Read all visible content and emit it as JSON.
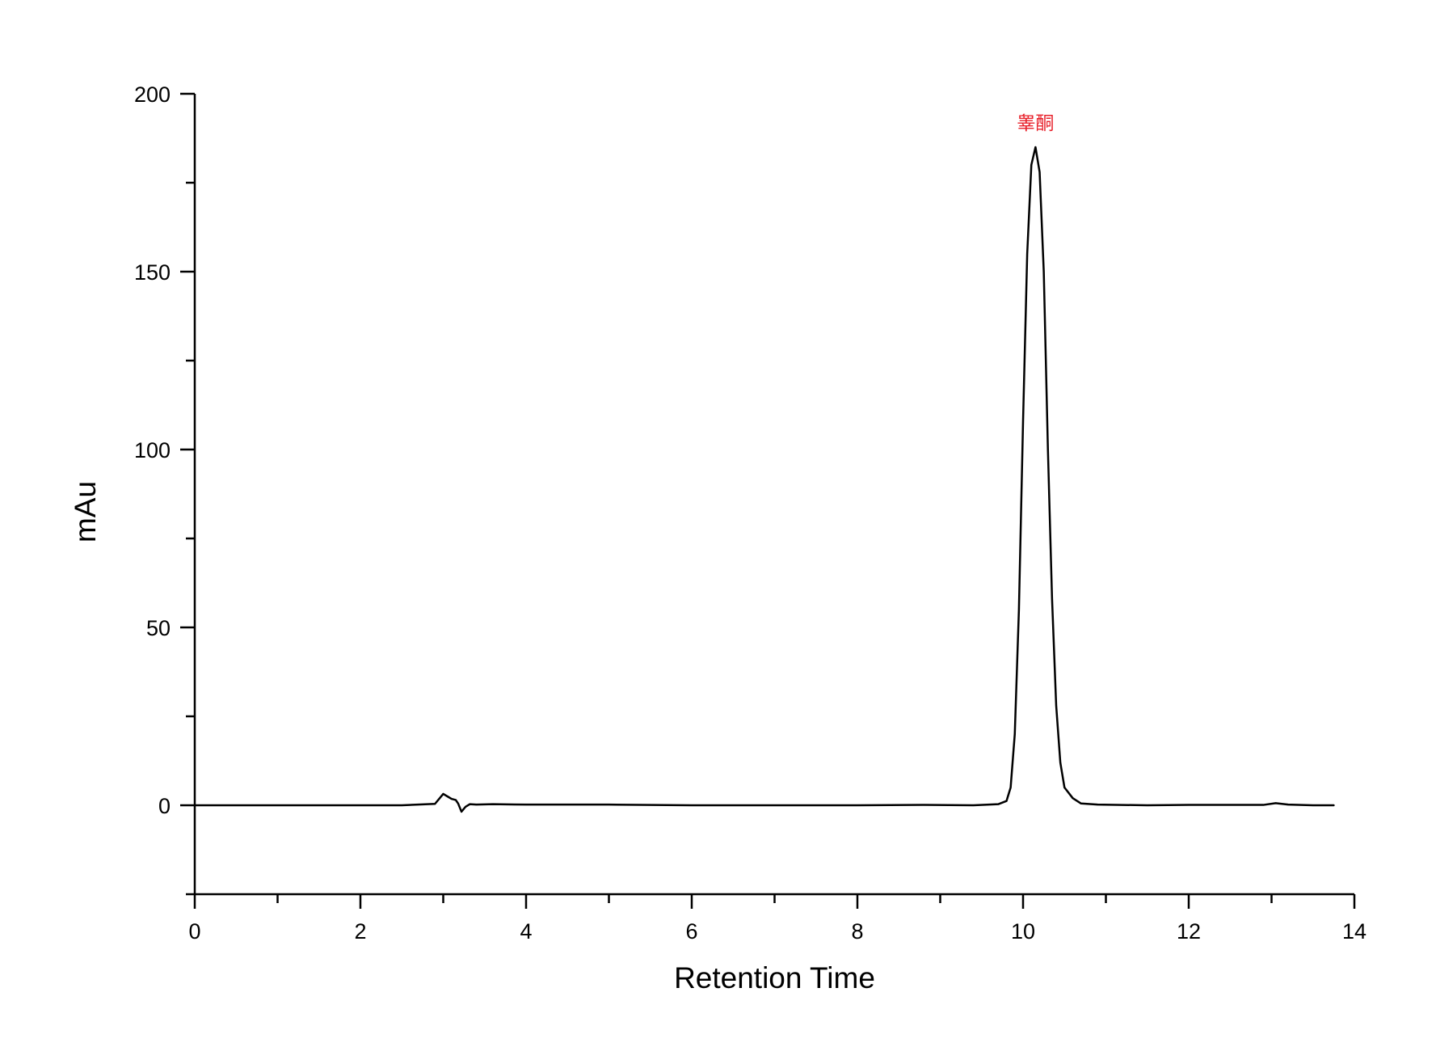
{
  "chart_data": {
    "type": "line",
    "title": "",
    "xlabel": "Retention Time",
    "ylabel": "mAu",
    "xlim": [
      0,
      14
    ],
    "ylim": [
      -25,
      200
    ],
    "x_major_ticks": [
      "0",
      "2",
      "4",
      "6",
      "8",
      "10",
      "12",
      "14"
    ],
    "y_major_ticks": [
      "0",
      "50",
      "100",
      "150",
      "200"
    ],
    "grid": false,
    "legend": "none",
    "line_color": "#000000",
    "annotation_color": "#e8202a",
    "annotations": [
      {
        "text": "睾酮",
        "x": 10.15,
        "y": 185
      }
    ],
    "series": [
      {
        "x": [
          0,
          1.0,
          2.0,
          2.5,
          2.9,
          3.0,
          3.05,
          3.1,
          3.15,
          3.18,
          3.22,
          3.27,
          3.32,
          3.4,
          3.6,
          4.0,
          5.0,
          6.0,
          7.0,
          8.0,
          8.8,
          9.4,
          9.7,
          9.8,
          9.85,
          9.9,
          9.95,
          10.0,
          10.05,
          10.1,
          10.15,
          10.2,
          10.25,
          10.3,
          10.35,
          10.4,
          10.45,
          10.5,
          10.6,
          10.7,
          10.9,
          11.5,
          12.0,
          12.9,
          13.05,
          13.2,
          13.5,
          13.75
        ],
        "y": [
          0,
          0,
          0,
          0,
          0.4,
          3.2,
          2.5,
          1.8,
          1.5,
          0.5,
          -1.8,
          -0.4,
          0.3,
          0.2,
          0.3,
          0.2,
          0.2,
          0,
          0,
          0,
          0.1,
          0,
          0.3,
          1.2,
          5,
          20,
          55,
          108,
          155,
          180,
          185,
          178,
          150,
          100,
          58,
          28,
          12,
          5,
          2,
          0.5,
          0.2,
          0,
          0.1,
          0.1,
          0.6,
          0.2,
          0,
          0
        ]
      }
    ]
  }
}
